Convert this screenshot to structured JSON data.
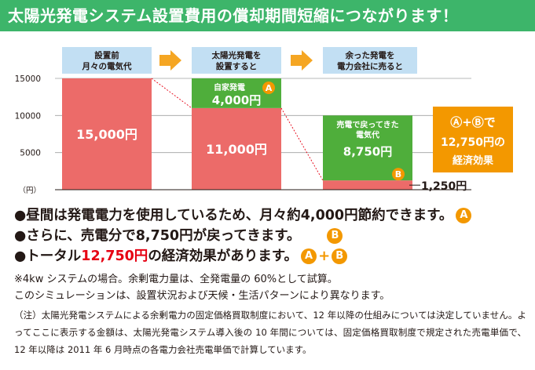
{
  "title": "太陽光発電システム設置費用の償却期間短縮につながります！",
  "chart_data": {
    "type": "bar",
    "ylim": [
      0,
      15000
    ],
    "y_ticks": [
      "15000",
      "10000",
      "5000"
    ],
    "y_unit": "（円）",
    "categories": [
      "設置前\n月々の電気代",
      "太陽光発電を\n設置すると",
      "余った発電を\n電力会社に売ると"
    ],
    "bars": [
      {
        "value": 15000,
        "label": "15,000円"
      },
      {
        "value": 11000,
        "label": "11,000円",
        "stack": {
          "value": 4000,
          "label_title": "自家発電",
          "label_value": "4,000円",
          "badge": "A"
        }
      },
      {
        "value": 1250,
        "label": "1,250円",
        "stack": {
          "value": 8750,
          "label_title": "売電で戻ってきた\n電気代",
          "label_value": "8,750円",
          "badge": "B"
        }
      }
    ],
    "summary": {
      "line1": "Ⓐ+Ⓑで",
      "line2": "12,750円の",
      "line3": "経済効果"
    },
    "colors": {
      "main": "#ec6b69",
      "stack": "#4fae3b",
      "header": "#c2dff3",
      "arrow": "#f5a623",
      "summary": "#f39800",
      "badge": "#f39800"
    }
  },
  "bullets": {
    "b1": "●昼間は発電電力を使用しているため、月々約4,000円節約できます。",
    "b1_badge": "A",
    "b2": "●さらに、売電分で8,750円が戻ってきます。",
    "b2_badge": "B",
    "b3_pre": "●トータル",
    "b3_red": "12,750円",
    "b3_post": "の経済効果があります。",
    "b3_badge1": "A",
    "b3_badge2": "B",
    "b3_plus": "+"
  },
  "notes": {
    "n1": "※4kw システムの場合。余剰電力量は、全発電量の 60%として試算。",
    "n2": "このシミュレーションは、設置状況および天候・生活パターンにより異なります。",
    "n3": "（注）太陽光発電システムによる余剰電力の固定価格買取制度において、12 年以降の仕組みについては決定していません。よってここに表示する金額は、太陽光発電システム導入後の 10 年間については、固定価格買取制度で規定された売電単価で、12 年以降は 2011 年 6 月時点の各電力会社売電単価で計算しています。"
  }
}
